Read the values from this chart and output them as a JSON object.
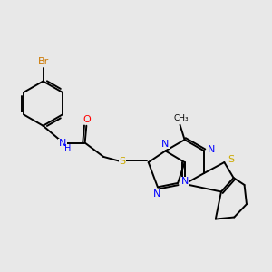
{
  "background_color": "#e8e8e8",
  "figure_size": [
    3.0,
    3.0
  ],
  "dpi": 100,
  "atom_colors": {
    "C": "#000000",
    "N": "#0000ff",
    "O": "#ff0000",
    "S": "#ccaa00",
    "Br": "#cc7700",
    "H": "#000000"
  },
  "bond_color": "#000000",
  "bond_width": 1.4,
  "font_size": 8
}
